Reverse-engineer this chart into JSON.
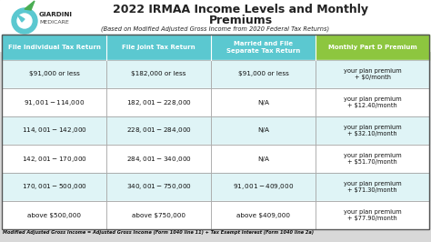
{
  "title_line1": "2022 IRMAA Income Levels and Monthly",
  "title_line2": "Premiums",
  "subtitle": "(Based on Modified Adjusted Gross Income from 2020 Federal Tax Returns)",
  "footnote": "Modified Adjusted Gross Income = Adjusted Gross Income (Form 1040 line 11) + Tax Exempt Interest (Form 1040 line 2a)",
  "bg_color": "#d8d8d8",
  "header_bg": "#5bc8d0",
  "header_4th_bg": "#8dc63f",
  "row_bg_even": "#dff4f6",
  "row_bg_odd": "#ffffff",
  "border_color": "#888888",
  "title_color": "#222222",
  "subtitle_color": "#222222",
  "footnote_color": "#111111",
  "header_text_color": "#ffffff",
  "logo_color_g": "#5bc8d0",
  "logo_color_leaf": "#4aad52",
  "col_headers": [
    "File Individual Tax Return",
    "File Joint Tax Return",
    "Married and File\nSeparate Tax Return",
    "Monthly Part D Premium"
  ],
  "col_props": [
    0.245,
    0.245,
    0.245,
    0.265
  ],
  "rows": [
    [
      "$91,000 or less",
      "$182,000 or less",
      "$91,000 or less",
      "your plan premium\n+ $0/month"
    ],
    [
      "$91,001 - $114,000",
      "$182,001 - $228,000",
      "N/A",
      "your plan premium\n+ $12.40/month"
    ],
    [
      "$114,001 - $142,000",
      "$228,001 - $284,000",
      "N/A",
      "your plan premium\n+ $32.10/month"
    ],
    [
      "$142,001 - $170,000",
      "$284,001 - $340,000",
      "N/A",
      "your plan premium\n+ $51.70/month"
    ],
    [
      "$170,001 - $500,000",
      "$340,001 - $750,000",
      "$91,001 - $409,000",
      "your plan premium\n+ $71.30/month"
    ],
    [
      "above $500,000",
      "above $750,000",
      "above $409,000",
      "your plan premium\n+ $77.90/month"
    ]
  ]
}
